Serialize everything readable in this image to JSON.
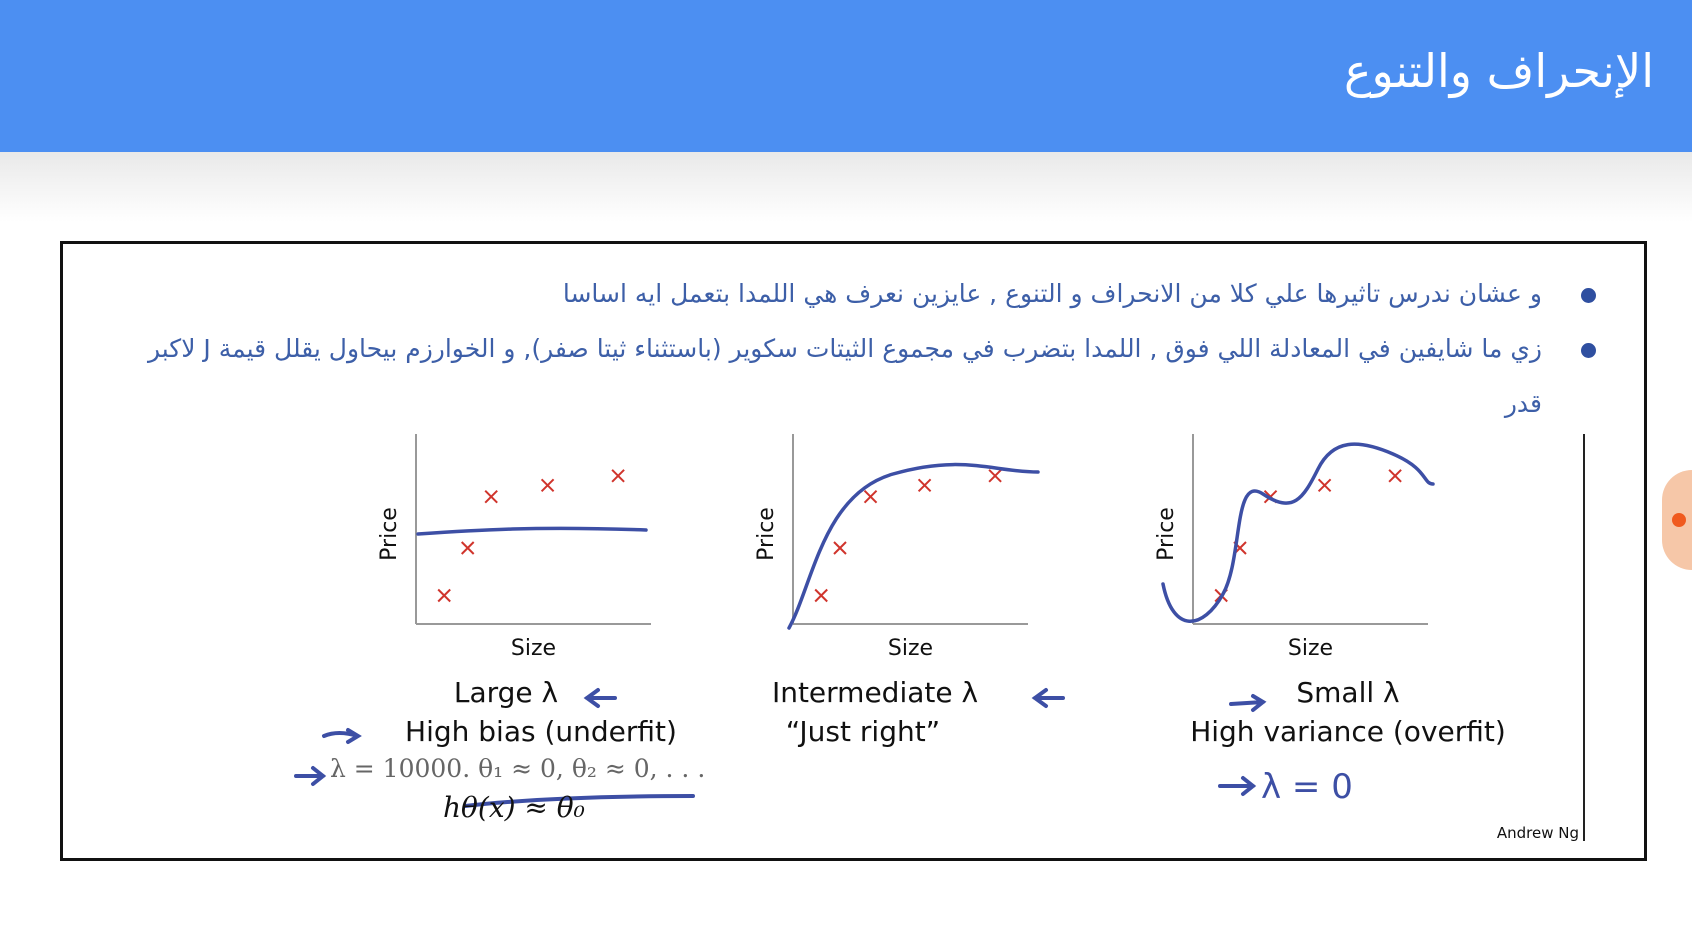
{
  "header": {
    "title": "الإنحراف والتنوع"
  },
  "bullets": [
    "و عشان ندرس تاثيرها علي كلا من الانحراف و التنوع , عايزين نعرف هي اللمدا بتعمل ايه اساسا",
    "زي ما شايفين في المعادلة اللي فوق , اللمدا بتضرب في مجموع الثيتات سكوير (باستثناء ثيتا صفر), و الخوارزم بيحاول يقلل قيمة J لاكبر قدر"
  ],
  "figure": {
    "panels": [
      {
        "ylabel": "Price",
        "xlabel": "Size",
        "caption_line1": "Large λ",
        "caption_line2": "High bias (underfit)",
        "points": [
          [
            0.12,
            0.85
          ],
          [
            0.22,
            0.6
          ],
          [
            0.32,
            0.33
          ],
          [
            0.56,
            0.27
          ],
          [
            0.86,
            0.22
          ]
        ],
        "fit": "flat"
      },
      {
        "ylabel": "Price",
        "xlabel": "Size",
        "caption_line1": "Intermediate λ",
        "caption_line2": "“Just right”",
        "points": [
          [
            0.12,
            0.85
          ],
          [
            0.2,
            0.6
          ],
          [
            0.33,
            0.33
          ],
          [
            0.56,
            0.27
          ],
          [
            0.86,
            0.22
          ]
        ],
        "fit": "smooth"
      },
      {
        "ylabel": "Price",
        "xlabel": "Size",
        "caption_line1": "Small λ",
        "caption_line2": "High variance (overfit)",
        "points": [
          [
            0.12,
            0.85
          ],
          [
            0.2,
            0.6
          ],
          [
            0.33,
            0.33
          ],
          [
            0.56,
            0.27
          ],
          [
            0.86,
            0.22
          ]
        ],
        "fit": "wiggly"
      }
    ],
    "formula_line1": "λ = 10000.  θ₁ ≈ 0, θ₂ ≈ 0, . . .",
    "formula_line2": "hθ(x) ≈ θ₀",
    "handwritten_note": "λ = 0",
    "credit": "Andrew Ng"
  },
  "colors": {
    "header_bg": "#4c8ff2",
    "bullet_text": "#3d5fa8",
    "ink_blue": "#3d4fa5",
    "point_red": "#d0342c",
    "orange_tab": "#f05a1e"
  }
}
